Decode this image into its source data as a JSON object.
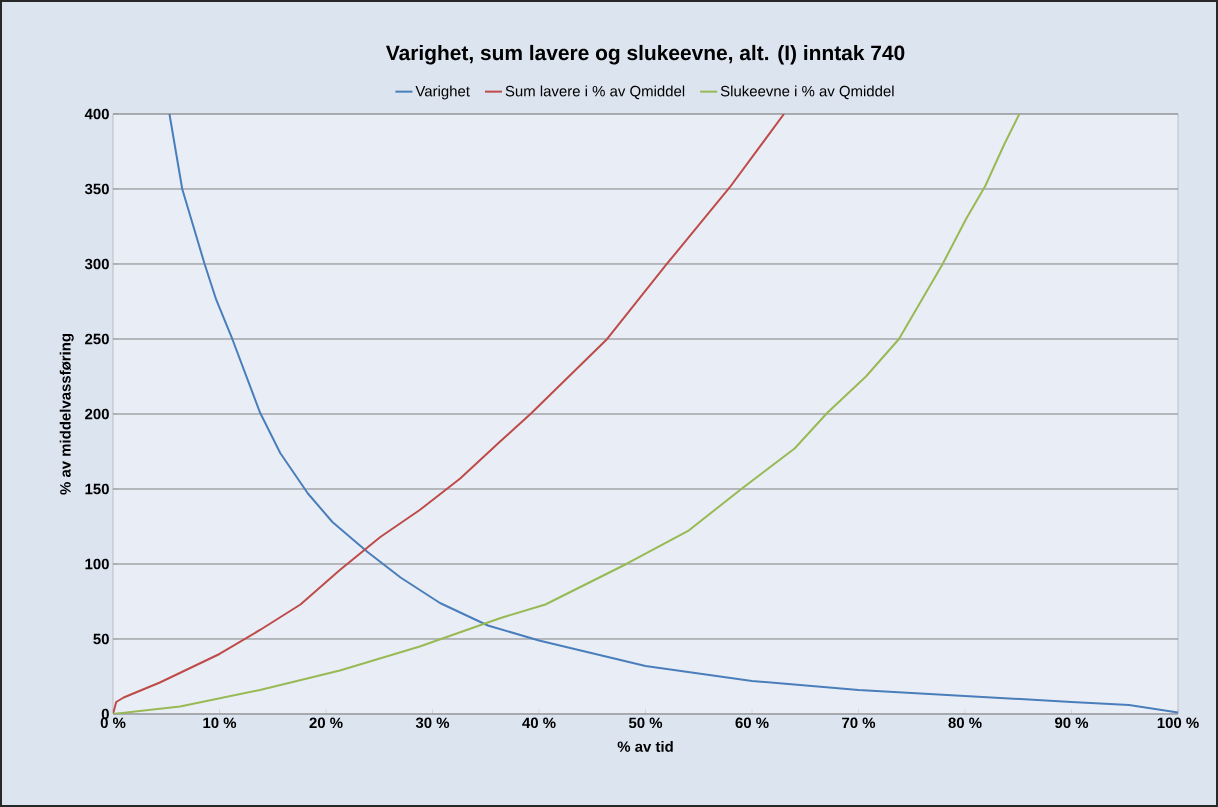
{
  "chart_data": {
    "type": "line",
    "title": "Varighet, sum lavere og slukeevne, alt. (I) inntak 740",
    "xlabel": "% av tid",
    "ylabel": "% av middelvassføring",
    "series": [
      {
        "name": "Varighet",
        "color": "#4a7ebb",
        "x": [
          5.3,
          6.5,
          8.6,
          9.7,
          11.2,
          13.8,
          15.7,
          18.3,
          20.6,
          23.9,
          27,
          30.7,
          35.2,
          40,
          50,
          60,
          70,
          80,
          90,
          95.4,
          100
        ],
        "values": [
          400,
          350,
          300,
          276,
          250,
          201,
          174,
          147,
          128,
          108,
          91,
          74,
          59,
          49,
          32,
          22,
          16,
          12,
          8,
          6,
          1
        ]
      },
      {
        "name": "Sum lavere i % av Qmiddel",
        "color": "#be4b48",
        "x": [
          0,
          0.3,
          1,
          4.4,
          10,
          13.8,
          17.6,
          21.3,
          25.1,
          28.8,
          32.6,
          36.4,
          39.2,
          46.4,
          52,
          57.9,
          63
        ],
        "values": [
          0,
          8,
          11,
          21,
          40,
          56,
          73,
          96,
          118,
          136,
          157,
          182,
          200,
          250,
          300,
          351,
          400
        ]
      },
      {
        "name": "Slukeevne i % av Qmiddel",
        "color": "#98b954",
        "x": [
          0,
          6.3,
          13.8,
          21.3,
          28.8,
          36.4,
          40.6,
          48.2,
          54,
          59,
          64,
          67.1,
          70.7,
          73.8,
          77.9,
          80.1,
          81.9,
          83.7,
          85.1
        ],
        "values": [
          0,
          5,
          16,
          29,
          45,
          64,
          73,
          100,
          122,
          150,
          177,
          201,
          225,
          250,
          300,
          330,
          352,
          380,
          400
        ]
      }
    ],
    "xlim": [
      0,
      100
    ],
    "ylim": [
      0,
      400
    ],
    "xticks": [
      {
        "value": 0,
        "label": "0 %"
      },
      {
        "value": 10,
        "label": "10 %"
      },
      {
        "value": 20,
        "label": "20 %"
      },
      {
        "value": 30,
        "label": "30 %"
      },
      {
        "value": 40,
        "label": "40 %"
      },
      {
        "value": 50,
        "label": "50 %"
      },
      {
        "value": 60,
        "label": "60 %"
      },
      {
        "value": 70,
        "label": "70 %"
      },
      {
        "value": 80,
        "label": "80 %"
      },
      {
        "value": 90,
        "label": "90 %"
      },
      {
        "value": 100,
        "label": "100 %"
      }
    ],
    "yticks": [
      0,
      50,
      100,
      150,
      200,
      250,
      300,
      350,
      400
    ],
    "grid": "y",
    "legend": "top",
    "marker": "none",
    "line_style": "solid"
  }
}
